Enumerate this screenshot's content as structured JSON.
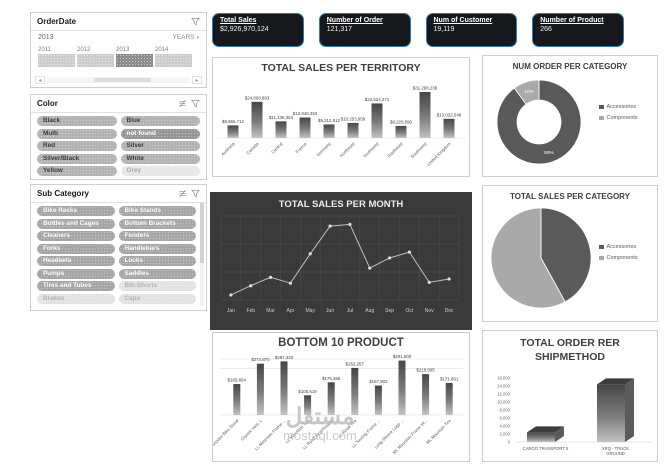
{
  "watermark": {
    "text_arabic": "مستقل",
    "text_latin": "mostaql.com"
  },
  "slicers": {
    "order_date": {
      "title": "OrderDate",
      "selected_range_label": "2013",
      "granularity_label": "YEARS",
      "years": [
        "2011",
        "2012",
        "2013",
        "2014"
      ],
      "selected_year": "2013"
    },
    "color": {
      "title": "Color",
      "items": [
        {
          "label": "Black",
          "state": "selected"
        },
        {
          "label": "Blue",
          "state": "selected"
        },
        {
          "label": "Multi",
          "state": "selected"
        },
        {
          "label": "not found",
          "state": "emphasized"
        },
        {
          "label": "Red",
          "state": "selected"
        },
        {
          "label": "Silver",
          "state": "selected"
        },
        {
          "label": "Silver/Black",
          "state": "selected"
        },
        {
          "label": "White",
          "state": "selected"
        },
        {
          "label": "Yellow",
          "state": "selected"
        },
        {
          "label": "Grey",
          "state": "unselected"
        }
      ]
    },
    "sub_category": {
      "title": "Sub Category",
      "items": [
        {
          "label": "Bike Racks",
          "state": "selected"
        },
        {
          "label": "Bike Stands",
          "state": "selected"
        },
        {
          "label": "Bottles and Cages",
          "state": "selected"
        },
        {
          "label": "Bottom Brackets",
          "state": "selected"
        },
        {
          "label": "Cleaners",
          "state": "selected"
        },
        {
          "label": "Fenders",
          "state": "selected"
        },
        {
          "label": "Forks",
          "state": "selected"
        },
        {
          "label": "Handlebars",
          "state": "selected"
        },
        {
          "label": "Headsets",
          "state": "selected"
        },
        {
          "label": "Locks",
          "state": "selected"
        },
        {
          "label": "Pumps",
          "state": "selected"
        },
        {
          "label": "Saddles",
          "state": "selected"
        },
        {
          "label": "Tires and Tubes",
          "state": "selected"
        },
        {
          "label": "Bib-Shorts",
          "state": "unselected"
        },
        {
          "label": "Brakes",
          "state": "unselected"
        },
        {
          "label": "Caps",
          "state": "unselected"
        }
      ]
    }
  },
  "kpis": [
    {
      "label": "Total Sales",
      "value": "$2,926,970,124"
    },
    {
      "label": "Number of Order",
      "value": "121,317"
    },
    {
      "label": "Num of Customer",
      "value": "19,119"
    },
    {
      "label": "Number of Product",
      "value": "266"
    }
  ],
  "chart_data": [
    {
      "type": "bar",
      "title": "TOTAL SALES PER TERRITORY",
      "categories": [
        "Australia",
        "Canada",
        "Central",
        "France",
        "Germany",
        "Northeast",
        "Northwest",
        "Southeast",
        "Southwest",
        "United Kingdom"
      ],
      "values": [
        8566712,
        24608883,
        11336353,
        13948353,
        9212512,
        10253959,
        23524271,
        8220590,
        31298238,
        13032548
      ],
      "value_labels": [
        "$8,566,712",
        "$24,608,883",
        "$11,336,353",
        "$13,948,353",
        "$9,212,512",
        "$10,253,959",
        "$23,524,271",
        "$8,220,590",
        "$31,298,238",
        "$13,032,548"
      ],
      "ylim": [
        0,
        32000000
      ],
      "grid": false,
      "legend": "none"
    },
    {
      "type": "pie",
      "subtype": "donut",
      "title": "NUM ORDER PER CATEGORY",
      "slices": [
        {
          "name": "Accessories",
          "value_pct": 90,
          "label": "90%",
          "color": "#595959"
        },
        {
          "name": "Components",
          "value_pct": 10,
          "label": "10%",
          "color": "#a9a9a9"
        }
      ],
      "legend_position": "right"
    },
    {
      "type": "line",
      "title": "TOTAL SALES PER MONTH",
      "x": [
        "Jan",
        "Feb",
        "Mar",
        "Apr",
        "May",
        "Jun",
        "Jul",
        "Aug",
        "Sep",
        "Oct",
        "Nov",
        "Dec"
      ],
      "relative_values": [
        0.06,
        0.17,
        0.27,
        0.2,
        0.55,
        0.88,
        0.9,
        0.38,
        0.5,
        0.57,
        0.21,
        0.25
      ],
      "y_axis": "unlabeled",
      "grid": true,
      "background": "#3a3a3a"
    },
    {
      "type": "pie",
      "title": "TOTAL SALES PER CATEGORY",
      "slices": [
        {
          "name": "Accessories",
          "value_pct": 42,
          "label": "",
          "color": "#5a5a5a"
        },
        {
          "name": "Components",
          "value_pct": 58,
          "label": "",
          "color": "#a9a9a9"
        }
      ],
      "legend_position": "right"
    },
    {
      "type": "bar",
      "title": "BOTTOM 10 PRODUCT",
      "categories": [
        "All-Purpose Bike Stand",
        "Classic Vest, L",
        "LL Mountain Frame ...",
        "LL Mountain Tire",
        "LL Road Seat/Saddle",
        "LL Road Tire",
        "LL Touring Frame ...",
        "Long-Sleeve Logo ...",
        "ML Mountain Frame-W...",
        "ML Mountain Tire"
      ],
      "values": [
        165804,
        274870,
        287333,
        105619,
        175366,
        252257,
        157902,
        291600,
        218895,
        171801
      ],
      "value_labels": [
        "$165,804",
        "$274,870",
        "$287,333",
        "$105,619",
        "$175,366",
        "$252,257",
        "$157,902",
        "$291,600",
        "$218,895",
        "$171,801"
      ],
      "ylim": [
        0,
        300000
      ],
      "grid": true
    },
    {
      "type": "bar",
      "subtype": "3d",
      "title": "TOTAL ORDER RER SHIPMETHOD",
      "categories": [
        "CARGO TRANSPORT 5",
        "XRQ - TRUCK GROUND"
      ],
      "category_lines": [
        [
          "CARGO TRANSPORT 5"
        ],
        [
          "XRQ - TRUCK",
          "GROUND"
        ]
      ],
      "values": [
        2400,
        14400
      ],
      "ytick_labels": [
        "0",
        "2,000",
        "4,000",
        "6,000",
        "8,000",
        "10,000",
        "12,000",
        "14,000",
        "16,000"
      ],
      "ylim": [
        0,
        16000
      ]
    }
  ]
}
